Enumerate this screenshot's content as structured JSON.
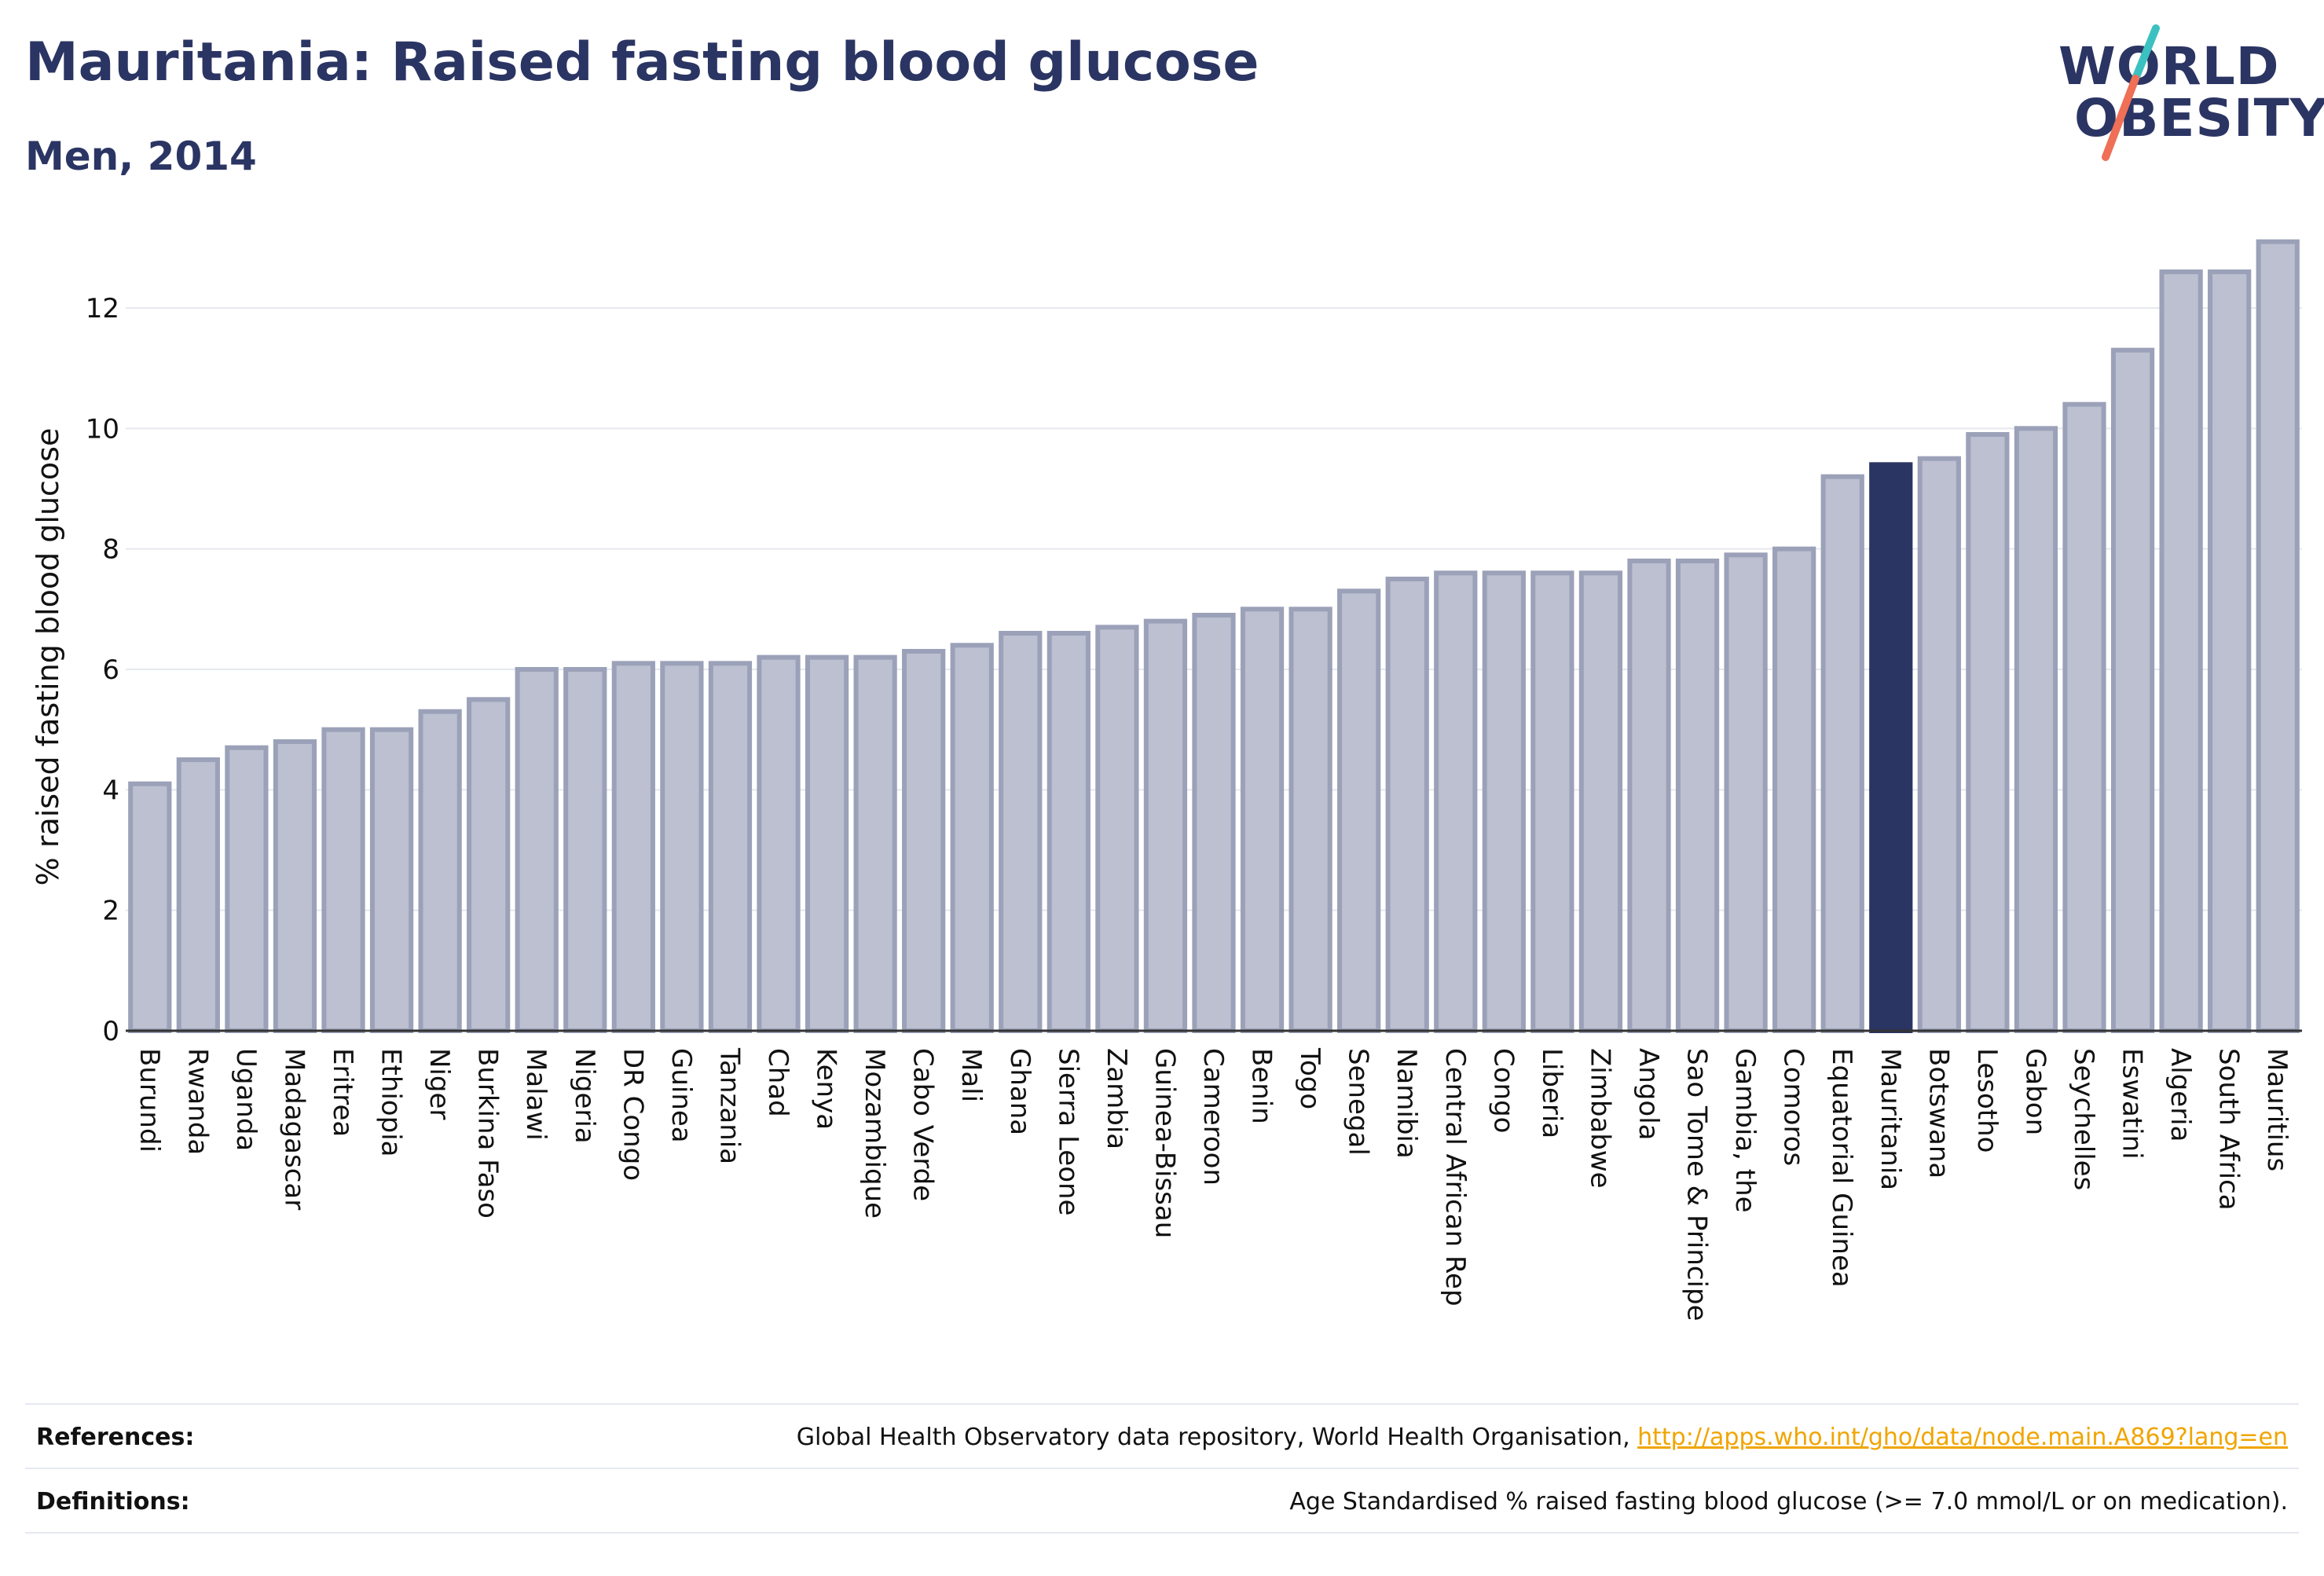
{
  "header": {
    "title": "Mauritania: Raised fasting blood glucose",
    "subtitle": "Men, 2014"
  },
  "logo": {
    "line1": "WORLD",
    "line2": "OBESITY"
  },
  "footer": {
    "references_label": "References:",
    "references_text": "Global Health Observatory data repository, World Health Organisation, ",
    "references_link": "http://apps.who.int/gho/data/node.main.A869?lang=en",
    "definitions_label": "Definitions:",
    "definitions_text": "Age Standardised % raised fasting blood glucose (>= 7.0 mmol/L or on medication)."
  },
  "colors": {
    "bar_fill": "#bcc0d0",
    "bar_stroke": "#9ba1b8",
    "highlight": "#2b3563",
    "grid": "#e6e8ee",
    "axis_text": "#111111",
    "logo_slash_top": "#3cc1c1",
    "logo_slash_bottom": "#ef6f57"
  },
  "chart_data": {
    "type": "bar",
    "ylabel": "% raised fasting blood glucose",
    "ylim": [
      0,
      13.2
    ],
    "yticks": [
      0,
      2,
      4,
      6,
      8,
      10,
      12
    ],
    "grid": true,
    "highlight_category": "Mauritania",
    "categories": [
      "Burundi",
      "Rwanda",
      "Uganda",
      "Madagascar",
      "Eritrea",
      "Ethiopia",
      "Niger",
      "Burkina Faso",
      "Malawi",
      "Nigeria",
      "DR Congo",
      "Guinea",
      "Tanzania",
      "Chad",
      "Kenya",
      "Mozambique",
      "Cabo Verde",
      "Mali",
      "Ghana",
      "Sierra Leone",
      "Zambia",
      "Guinea-Bissau",
      "Cameroon",
      "Benin",
      "Togo",
      "Senegal",
      "Namibia",
      "Central African Rep",
      "Congo",
      "Liberia",
      "Zimbabwe",
      "Angola",
      "Sao Tome & Principe",
      "Gambia, the",
      "Comoros",
      "Equatorial Guinea",
      "Mauritania",
      "Botswana",
      "Lesotho",
      "Gabon",
      "Seychelles",
      "Eswatini",
      "Algeria",
      "South Africa",
      "Mauritius"
    ],
    "values": [
      4.1,
      4.5,
      4.7,
      4.8,
      5.0,
      5.0,
      5.3,
      5.5,
      6.0,
      6.0,
      6.1,
      6.1,
      6.1,
      6.2,
      6.2,
      6.2,
      6.3,
      6.4,
      6.6,
      6.6,
      6.7,
      6.8,
      6.9,
      7.0,
      7.0,
      7.3,
      7.5,
      7.6,
      7.6,
      7.6,
      7.6,
      7.8,
      7.8,
      7.9,
      8.0,
      9.2,
      9.4,
      9.5,
      9.9,
      10.0,
      10.4,
      11.3,
      12.6,
      12.6,
      13.1
    ]
  }
}
